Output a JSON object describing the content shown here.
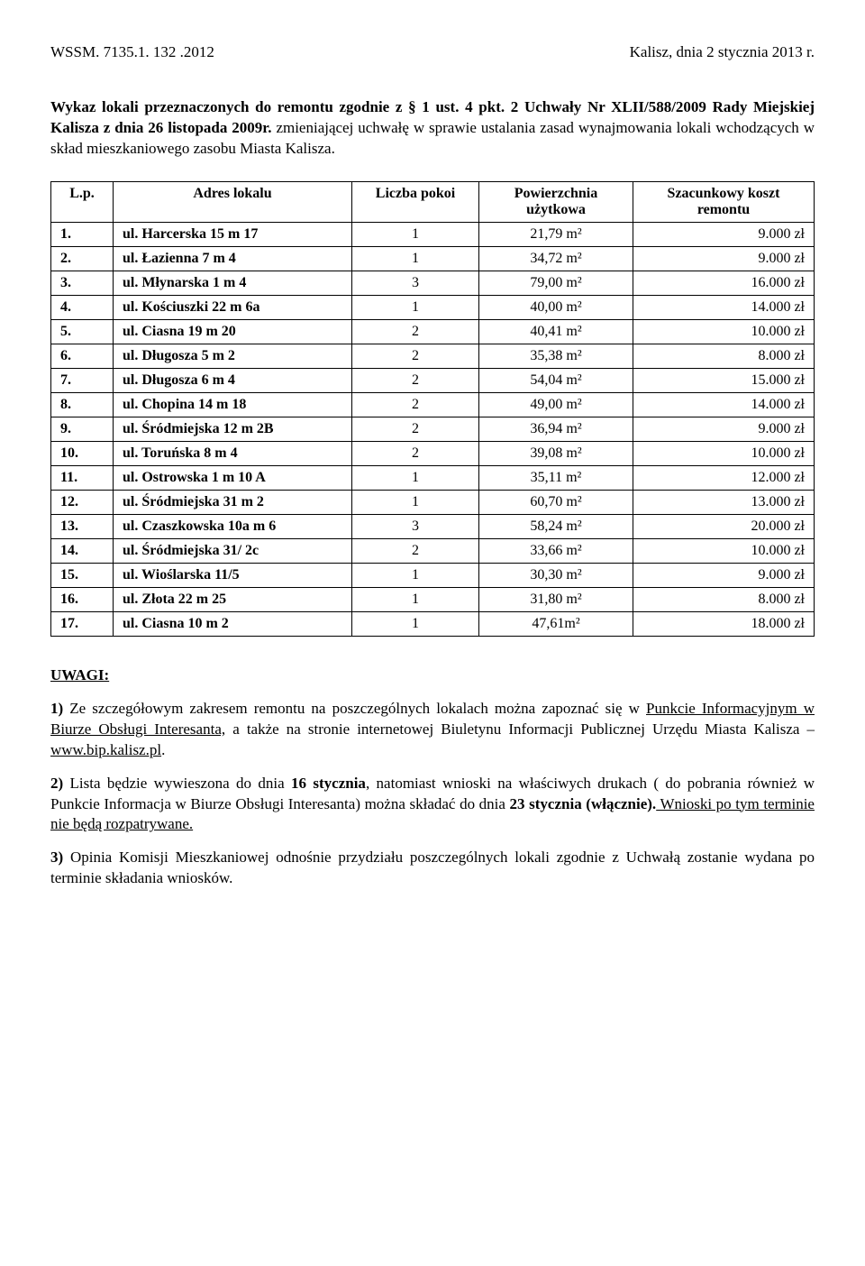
{
  "header": {
    "ref": "WSSM. 7135.1. 132 .2012",
    "place_date": "Kalisz, dnia 2 stycznia 2013 r."
  },
  "intro": {
    "line1_prefix": "Wykaz lokali przeznaczonych do remontu zgodnie z § 1 ust. 4 pkt. 2 Uchwały Nr XLII/588/2009 Rady Miejskiej Kalisza z dnia 26 listopada 2009r.",
    "line2": " zmieniającej uchwałę w sprawie ustalania zasad wynajmowania lokali wchodzących w skład mieszkaniowego zasobu Miasta Kalisza."
  },
  "table": {
    "headers": {
      "lp": "L.p.",
      "addr": "Adres lokalu",
      "rooms": "Liczba pokoi",
      "area": "Powierzchnia użytkowa",
      "cost": "Szacunkowy koszt remontu"
    },
    "rows": [
      {
        "lp": "1.",
        "addr": "ul. Harcerska 15 m 17",
        "rooms": "1",
        "area": "21,79 m²",
        "cost": "9.000 zł"
      },
      {
        "lp": "2.",
        "addr": "ul. Łazienna 7 m 4",
        "rooms": "1",
        "area": "34,72 m²",
        "cost": "9.000 zł"
      },
      {
        "lp": "3.",
        "addr": "ul. Młynarska 1 m 4",
        "rooms": "3",
        "area": "79,00 m²",
        "cost": "16.000 zł"
      },
      {
        "lp": "4.",
        "addr": "ul. Kościuszki 22 m 6a",
        "rooms": "1",
        "area": "40,00  m²",
        "cost": "14.000 zł"
      },
      {
        "lp": "5.",
        "addr": "ul. Ciasna 19 m 20",
        "rooms": "2",
        "area": "40,41 m²",
        "cost": "10.000 zł"
      },
      {
        "lp": "6.",
        "addr": "ul. Długosza 5 m 2",
        "rooms": "2",
        "area": "35,38 m²",
        "cost": "8.000 zł"
      },
      {
        "lp": "7.",
        "addr": "ul. Długosza 6 m 4",
        "rooms": "2",
        "area": "54,04 m²",
        "cost": "15.000 zł"
      },
      {
        "lp": "8.",
        "addr": "ul. Chopina 14 m 18",
        "rooms": "2",
        "area": "49,00 m²",
        "cost": "14.000 zł"
      },
      {
        "lp": "9.",
        "addr": "ul. Śródmiejska 12 m 2B",
        "rooms": "2",
        "area": "36,94  m²",
        "cost": "9.000 zł"
      },
      {
        "lp": "10.",
        "addr": "ul. Toruńska 8 m 4",
        "rooms": "2",
        "area": "39,08  m²",
        "cost": "10.000 zł"
      },
      {
        "lp": "11.",
        "addr": "ul. Ostrowska   1 m 10 A",
        "rooms": "1",
        "area": "35,11 m²",
        "cost": "12.000 zł"
      },
      {
        "lp": "12.",
        "addr": "ul. Śródmiejska   31 m 2",
        "rooms": "1",
        "area": "60,70 m²",
        "cost": "13.000 zł"
      },
      {
        "lp": "13.",
        "addr": "ul. Czaszkowska 10a m 6",
        "rooms": "3",
        "area": "58,24 m²",
        "cost": "20.000 zł"
      },
      {
        "lp": "14.",
        "addr": "ul. Śródmiejska   31/ 2c",
        "rooms": "2",
        "area": "33,66 m²",
        "cost": "10.000 zł"
      },
      {
        "lp": "15.",
        "addr": "ul. Wioślarska 11/5",
        "rooms": "1",
        "area": "30,30 m²",
        "cost": "9.000 zł"
      },
      {
        "lp": "16.",
        "addr": "ul. Złota 22 m 25",
        "rooms": "1",
        "area": "31,80 m²",
        "cost": "8.000 zł"
      },
      {
        "lp": "17.",
        "addr": "ul. Ciasna 10 m 2",
        "rooms": "1",
        "area": "47,61m²",
        "cost": "18.000 zł"
      }
    ]
  },
  "notes": {
    "heading": "UWAGI:",
    "n1_prefix": "1)",
    "n1_a": " Ze szczegółowym zakresem remontu na poszczególnych lokalach można zapoznać się w ",
    "n1_u1": "Punkcie Informacyjnym w Biurze Obsługi Interesanta,",
    "n1_b": " a także na stronie internetowej Biuletynu Informacji Publicznej Urzędu Miasta Kalisza – ",
    "n1_u2": "www.bip.kalisz.pl",
    "n1_c": ".",
    "n2_prefix": "2)",
    "n2_a": " Lista będzie wywieszona do dnia ",
    "n2_b1": "16 stycznia",
    "n2_b": ", natomiast wnioski na właściwych drukach ( do pobrania również w Punkcie Informacja w Biurze Obsługi Interesanta) można składać do dnia ",
    "n2_b2": "23 stycznia (włącznie).",
    "n2_u": " Wnioski po tym terminie nie będą rozpatrywane.",
    "n3_prefix": "3)",
    "n3": " Opinia Komisji Mieszkaniowej odnośnie przydziału poszczególnych lokali zgodnie z Uchwałą zostanie wydana po terminie składania wniosków."
  }
}
